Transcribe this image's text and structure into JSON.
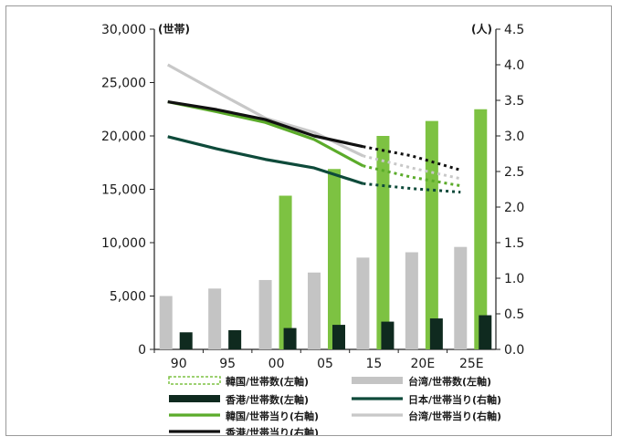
{
  "chart_data": {
    "type": "bar",
    "categories": [
      "90",
      "95",
      "00",
      "05",
      "15",
      "20E",
      "25E"
    ],
    "left_axis": {
      "unit": "(世帯)",
      "ylim": [
        0,
        30000
      ],
      "ticks": [
        "0",
        "5,000",
        "10,000",
        "15,000",
        "20,000",
        "25,000",
        "30,000"
      ]
    },
    "right_axis": {
      "unit": "(人)",
      "ylim": [
        0,
        4.5
      ],
      "ticks": [
        "0.0",
        "0.5",
        "1.0",
        "1.5",
        "2.0",
        "2.5",
        "3.0",
        "3.5",
        "4.0",
        "4.5"
      ]
    },
    "bar_series": [
      {
        "name": "韓国/世帯数(左軸)",
        "color": "#7dc242",
        "values": [
          null,
          null,
          14400,
          16900,
          20000,
          21400,
          22500
        ]
      },
      {
        "name": "台湾/世帯数(左軸)",
        "color": "#c4c4c4",
        "values": [
          5000,
          5700,
          6500,
          7200,
          8600,
          9100,
          9600
        ]
      },
      {
        "name": "香港/世帯数(左軸)",
        "color": "#0f2a1f",
        "values": [
          1600,
          1800,
          2000,
          2300,
          2600,
          2900,
          3200
        ]
      }
    ],
    "line_series": [
      {
        "name": "日本/世帯当り(右軸)",
        "color": "#0e4a3a",
        "axis": "right",
        "values": [
          2.99,
          2.82,
          2.67,
          2.55,
          2.33,
          2.26,
          2.21
        ]
      },
      {
        "name": "韓国/世帯当り(右軸)",
        "color": "#5bab2a",
        "axis": "right",
        "values": [
          3.48,
          3.34,
          3.19,
          2.95,
          2.58,
          2.42,
          2.3
        ]
      },
      {
        "name": "台湾/世帯当り(右軸)",
        "color": "#c8c8c8",
        "axis": "right",
        "values": [
          4.0,
          3.62,
          3.25,
          3.05,
          2.72,
          2.55,
          2.4
        ]
      },
      {
        "name": "香港/世帯当り(右軸)",
        "color": "#111111",
        "axis": "right",
        "values": [
          3.48,
          3.37,
          3.23,
          3.0,
          2.85,
          2.72,
          2.52
        ]
      }
    ],
    "projection_start_index": 4,
    "grid": false,
    "legend_position": "bottom"
  },
  "legend": [
    {
      "label": "韓国/世帯数(左軸)",
      "swatch": "bar-dashed",
      "color": "#7dc242"
    },
    {
      "label": "台湾/世帯数(左軸)",
      "swatch": "bar",
      "color": "#c4c4c4"
    },
    {
      "label": "香港/世帯数(左軸)",
      "swatch": "bar",
      "color": "#0f2a1f"
    },
    {
      "label": "日本/世帯当り(右軸)",
      "swatch": "line",
      "color": "#0e4a3a"
    },
    {
      "label": "韓国/世帯当り(右軸)",
      "swatch": "line",
      "color": "#5bab2a"
    },
    {
      "label": "台湾/世帯当り(右軸)",
      "swatch": "line",
      "color": "#c8c8c8"
    },
    {
      "label": "香港/世帯当り(右軸)",
      "swatch": "line",
      "color": "#111111"
    }
  ]
}
